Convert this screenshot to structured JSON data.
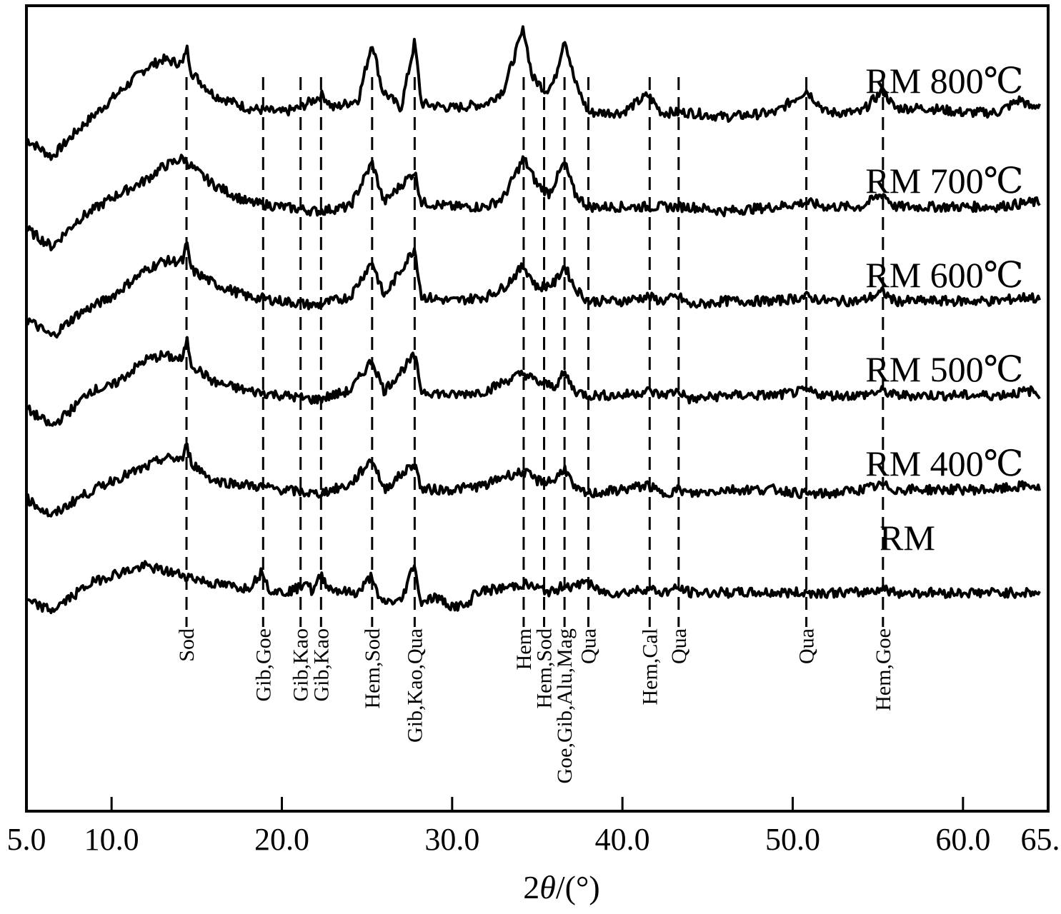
{
  "chart_data": {
    "type": "line",
    "xlabel_parts": [
      "2",
      "θ",
      "/(°)"
    ],
    "xlim": [
      5.0,
      65.0
    ],
    "xticks": [
      5.0,
      10.0,
      20.0,
      30.0,
      40.0,
      50.0,
      60.0,
      65.0
    ],
    "xtick_labels": [
      "5.0",
      "10.0",
      "20.0",
      "30.0",
      "40.0",
      "50.0",
      "60.0",
      "65.0"
    ],
    "grid": false,
    "legend": "series labels at right end of each trace",
    "x_range": [
      5.0,
      64.5
    ],
    "series": [
      {
        "name": "RM 800℃",
        "offset": 5,
        "points": [
          [
            5,
            0.9
          ],
          [
            6.5,
            0.5
          ],
          [
            8,
            1.1
          ],
          [
            10,
            1.8
          ],
          [
            12,
            2.5
          ],
          [
            13,
            2.7
          ],
          [
            14.2,
            2.6
          ],
          [
            14.4,
            3.0
          ],
          [
            14.7,
            2.4
          ],
          [
            16,
            1.9
          ],
          [
            18,
            1.6
          ],
          [
            20,
            1.5
          ],
          [
            21,
            1.6
          ],
          [
            22.4,
            1.9
          ],
          [
            23,
            1.6
          ],
          [
            24.5,
            1.8
          ],
          [
            25.3,
            3.1
          ],
          [
            25.9,
            2.0
          ],
          [
            27,
            1.6
          ],
          [
            27.8,
            3.1
          ],
          [
            28.2,
            1.7
          ],
          [
            30,
            1.6
          ],
          [
            32,
            1.7
          ],
          [
            33,
            2.0
          ],
          [
            34.2,
            3.4
          ],
          [
            34.7,
            2.3
          ],
          [
            35.5,
            2.0
          ],
          [
            36,
            2.2
          ],
          [
            36.6,
            3.2
          ],
          [
            37.2,
            2.2
          ],
          [
            38,
            1.5
          ],
          [
            40,
            1.5
          ],
          [
            41.5,
            1.9
          ],
          [
            42.3,
            1.5
          ],
          [
            44,
            1.5
          ],
          [
            46,
            1.4
          ],
          [
            49,
            1.5
          ],
          [
            50.8,
            2.0
          ],
          [
            52,
            1.5
          ],
          [
            54,
            1.5
          ],
          [
            55.3,
            2.0
          ],
          [
            56,
            1.6
          ],
          [
            58,
            1.6
          ],
          [
            60,
            1.5
          ],
          [
            62,
            1.5
          ],
          [
            63.4,
            1.8
          ],
          [
            64,
            1.6
          ],
          [
            64.5,
            1.7
          ]
        ]
      },
      {
        "name": "RM 700℃",
        "offset": 4,
        "points": [
          [
            5,
            1.0
          ],
          [
            6.5,
            0.6
          ],
          [
            8,
            1.2
          ],
          [
            10,
            1.7
          ],
          [
            12,
            2.1
          ],
          [
            13,
            2.4
          ],
          [
            14.2,
            2.6
          ],
          [
            15,
            2.3
          ],
          [
            16,
            2.0
          ],
          [
            18,
            1.6
          ],
          [
            20,
            1.5
          ],
          [
            22,
            1.4
          ],
          [
            24,
            1.5
          ],
          [
            25.3,
            2.5
          ],
          [
            26,
            1.6
          ],
          [
            27.8,
            2.3
          ],
          [
            28.2,
            1.6
          ],
          [
            30,
            1.5
          ],
          [
            32,
            1.5
          ],
          [
            33,
            1.7
          ],
          [
            34.2,
            2.6
          ],
          [
            35,
            2.0
          ],
          [
            35.7,
            1.8
          ],
          [
            36.6,
            2.5
          ],
          [
            37.2,
            1.8
          ],
          [
            38,
            1.5
          ],
          [
            40,
            1.5
          ],
          [
            42,
            1.5
          ],
          [
            44,
            1.5
          ],
          [
            46,
            1.4
          ],
          [
            49,
            1.5
          ],
          [
            50.8,
            1.6
          ],
          [
            52,
            1.5
          ],
          [
            54,
            1.5
          ],
          [
            55.3,
            1.8
          ],
          [
            56,
            1.5
          ],
          [
            58,
            1.5
          ],
          [
            60,
            1.5
          ],
          [
            62,
            1.5
          ],
          [
            64,
            1.6
          ],
          [
            64.5,
            1.6
          ]
        ]
      },
      {
        "name": "RM 600℃",
        "offset": 3,
        "points": [
          [
            5,
            1.1
          ],
          [
            6.5,
            0.7
          ],
          [
            8,
            1.2
          ],
          [
            10,
            1.6
          ],
          [
            12,
            2.2
          ],
          [
            13,
            2.4
          ],
          [
            14.2,
            2.4
          ],
          [
            14.4,
            2.8
          ],
          [
            14.7,
            2.2
          ],
          [
            16,
            1.9
          ],
          [
            18,
            1.6
          ],
          [
            20,
            1.5
          ],
          [
            22,
            1.4
          ],
          [
            24,
            1.6
          ],
          [
            25.3,
            2.4
          ],
          [
            26,
            1.6
          ],
          [
            27.8,
            2.7
          ],
          [
            28.2,
            1.6
          ],
          [
            30,
            1.5
          ],
          [
            32,
            1.6
          ],
          [
            33,
            1.8
          ],
          [
            34.2,
            2.3
          ],
          [
            35,
            1.8
          ],
          [
            36,
            1.9
          ],
          [
            36.6,
            2.3
          ],
          [
            37.2,
            1.8
          ],
          [
            38,
            1.5
          ],
          [
            40,
            1.5
          ],
          [
            41.5,
            1.6
          ],
          [
            42.3,
            1.5
          ],
          [
            43.3,
            1.6
          ],
          [
            44,
            1.4
          ],
          [
            46,
            1.5
          ],
          [
            49,
            1.5
          ],
          [
            50.8,
            1.6
          ],
          [
            52,
            1.5
          ],
          [
            54,
            1.5
          ],
          [
            55.3,
            1.7
          ],
          [
            56,
            1.5
          ],
          [
            58,
            1.5
          ],
          [
            60,
            1.5
          ],
          [
            62,
            1.5
          ],
          [
            64,
            1.6
          ],
          [
            64.5,
            1.5
          ]
        ]
      },
      {
        "name": "RM 500℃",
        "offset": 2,
        "points": [
          [
            5,
            1.2
          ],
          [
            6.5,
            0.8
          ],
          [
            8,
            1.3
          ],
          [
            8.7,
            1.6
          ],
          [
            10,
            1.7
          ],
          [
            12,
            2.3
          ],
          [
            13,
            2.4
          ],
          [
            14.2,
            2.3
          ],
          [
            14.4,
            2.8
          ],
          [
            14.7,
            2.2
          ],
          [
            16,
            1.8
          ],
          [
            18,
            1.6
          ],
          [
            20,
            1.5
          ],
          [
            22,
            1.4
          ],
          [
            24,
            1.6
          ],
          [
            25.3,
            2.3
          ],
          [
            26,
            1.6
          ],
          [
            27.8,
            2.4
          ],
          [
            28.2,
            1.6
          ],
          [
            30,
            1.5
          ],
          [
            32,
            1.6
          ],
          [
            33,
            1.8
          ],
          [
            34.2,
            2.0
          ],
          [
            35,
            1.8
          ],
          [
            36,
            1.7
          ],
          [
            36.6,
            2.0
          ],
          [
            37.2,
            1.6
          ],
          [
            38,
            1.5
          ],
          [
            40,
            1.5
          ],
          [
            41.5,
            1.6
          ],
          [
            42.3,
            1.5
          ],
          [
            43.3,
            1.6
          ],
          [
            44,
            1.4
          ],
          [
            46,
            1.5
          ],
          [
            49,
            1.5
          ],
          [
            50.8,
            1.6
          ],
          [
            52,
            1.5
          ],
          [
            54,
            1.5
          ],
          [
            55.3,
            1.6
          ],
          [
            56,
            1.5
          ],
          [
            58,
            1.5
          ],
          [
            60,
            1.5
          ],
          [
            62,
            1.5
          ],
          [
            64,
            1.6
          ],
          [
            64.5,
            1.5
          ]
        ]
      },
      {
        "name": "RM 400℃",
        "offset": 1,
        "points": [
          [
            5,
            1.3
          ],
          [
            6.5,
            0.9
          ],
          [
            8,
            1.3
          ],
          [
            10,
            1.7
          ],
          [
            12,
            2.0
          ],
          [
            13,
            2.2
          ],
          [
            14.2,
            2.2
          ],
          [
            14.4,
            2.5
          ],
          [
            14.7,
            2.1
          ],
          [
            16,
            1.7
          ],
          [
            18,
            1.6
          ],
          [
            20,
            1.5
          ],
          [
            22,
            1.4
          ],
          [
            24,
            1.6
          ],
          [
            25.3,
            2.2
          ],
          [
            26,
            1.5
          ],
          [
            27.8,
            2.1
          ],
          [
            28.2,
            1.5
          ],
          [
            30,
            1.5
          ],
          [
            32,
            1.6
          ],
          [
            33,
            1.8
          ],
          [
            34.2,
            1.9
          ],
          [
            35,
            1.7
          ],
          [
            36,
            1.7
          ],
          [
            36.6,
            2.0
          ],
          [
            37.2,
            1.5
          ],
          [
            38,
            1.4
          ],
          [
            40,
            1.5
          ],
          [
            41.5,
            1.6
          ],
          [
            42.3,
            1.4
          ],
          [
            43.3,
            1.5
          ],
          [
            44,
            1.4
          ],
          [
            46,
            1.5
          ],
          [
            49,
            1.5
          ],
          [
            50.8,
            1.4
          ],
          [
            52,
            1.4
          ],
          [
            54,
            1.5
          ],
          [
            55.3,
            1.6
          ],
          [
            56,
            1.5
          ],
          [
            58,
            1.5
          ],
          [
            60,
            1.5
          ],
          [
            62,
            1.5
          ],
          [
            64,
            1.6
          ],
          [
            64.5,
            1.5
          ]
        ]
      },
      {
        "name": "RM",
        "offset": 0,
        "points": [
          [
            5,
            1.1
          ],
          [
            6.5,
            0.9
          ],
          [
            8,
            1.3
          ],
          [
            8.7,
            1.5
          ],
          [
            10,
            1.7
          ],
          [
            12,
            1.9
          ],
          [
            13,
            1.8
          ],
          [
            14.2,
            1.7
          ],
          [
            16,
            1.5
          ],
          [
            18,
            1.4
          ],
          [
            18.9,
            1.8
          ],
          [
            19.2,
            1.4
          ],
          [
            20,
            1.3
          ],
          [
            21,
            1.4
          ],
          [
            21.4,
            1.6
          ],
          [
            21.8,
            1.3
          ],
          [
            22.3,
            1.7
          ],
          [
            22.8,
            1.4
          ],
          [
            24,
            1.3
          ],
          [
            24.5,
            1.3
          ],
          [
            25.3,
            1.7
          ],
          [
            25.7,
            1.1
          ],
          [
            27,
            1.1
          ],
          [
            27.8,
            2.0
          ],
          [
            28.1,
            1.1
          ],
          [
            29,
            1.2
          ],
          [
            30,
            1.0
          ],
          [
            31,
            1.0
          ],
          [
            31.2,
            1.3
          ],
          [
            33,
            1.4
          ],
          [
            34.2,
            1.5
          ],
          [
            35,
            1.4
          ],
          [
            36,
            1.3
          ],
          [
            36.6,
            1.5
          ],
          [
            37.2,
            1.4
          ],
          [
            37.8,
            1.6
          ],
          [
            38.3,
            1.4
          ],
          [
            39,
            1.3
          ],
          [
            40,
            1.3
          ],
          [
            41.5,
            1.4
          ],
          [
            42.3,
            1.3
          ],
          [
            43.3,
            1.4
          ],
          [
            44,
            1.3
          ],
          [
            46,
            1.3
          ],
          [
            49,
            1.3
          ],
          [
            50.8,
            1.3
          ],
          [
            52,
            1.3
          ],
          [
            54,
            1.3
          ],
          [
            55.3,
            1.4
          ],
          [
            56,
            1.3
          ],
          [
            58,
            1.3
          ],
          [
            60,
            1.3
          ],
          [
            62,
            1.3
          ],
          [
            64,
            1.3
          ],
          [
            64.5,
            1.3
          ]
        ]
      }
    ],
    "peak_markers": [
      {
        "x": 14.4,
        "label": "Sod"
      },
      {
        "x": 18.9,
        "label": "Gib,Goe"
      },
      {
        "x": 21.1,
        "label": "Gib,Kao"
      },
      {
        "x": 22.3,
        "label": "Gib,Kao"
      },
      {
        "x": 25.3,
        "label": "Hem,Sod"
      },
      {
        "x": 27.8,
        "label": "Gib,Kao,Qua"
      },
      {
        "x": 34.2,
        "label": "Hem"
      },
      {
        "x": 35.4,
        "label": "Hem,Sod"
      },
      {
        "x": 36.6,
        "label": "Goe,Gib,Alu,Mag"
      },
      {
        "x": 38.0,
        "label": "Qua"
      },
      {
        "x": 41.6,
        "label": "Hem,Cal"
      },
      {
        "x": 43.3,
        "label": "Qua"
      },
      {
        "x": 50.8,
        "label": "Qua"
      },
      {
        "x": 55.3,
        "label": "Hem,Goe"
      }
    ]
  }
}
